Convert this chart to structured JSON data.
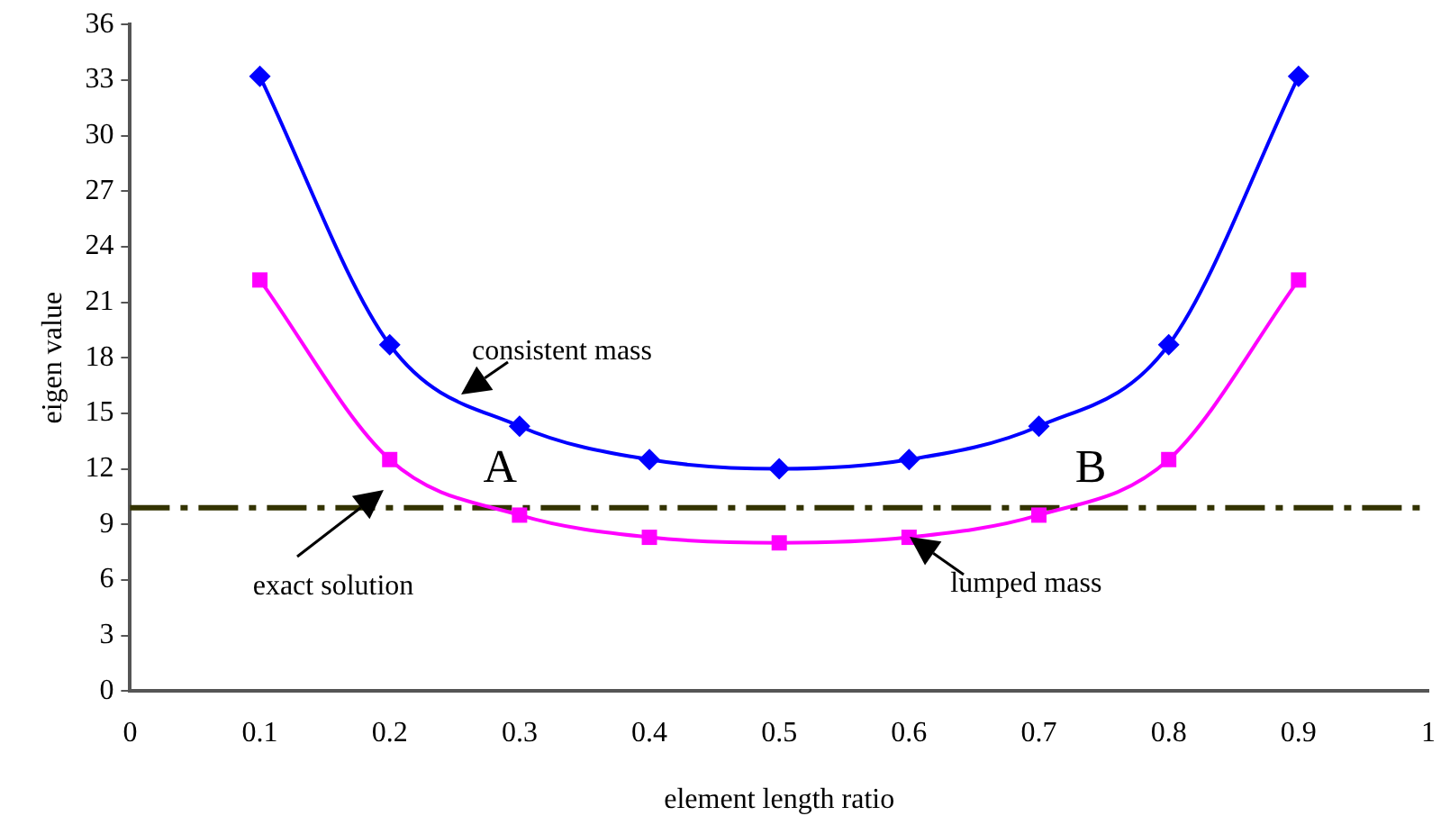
{
  "chart_data": {
    "type": "line",
    "xlabel": "element length ratio",
    "ylabel": "eigen value",
    "x": [
      0.1,
      0.2,
      0.3,
      0.4,
      0.5,
      0.6,
      0.7,
      0.8,
      0.9
    ],
    "series": [
      {
        "color": "#0000ff",
        "marker": "diamond",
        "values": [
          33.2,
          18.7,
          14.3,
          12.5,
          12.0,
          12.5,
          14.3,
          18.7,
          33.2
        ]
      },
      {
        "color": "#ff00ff",
        "marker": "square",
        "values": [
          22.2,
          12.5,
          9.5,
          8.3,
          8.0,
          8.3,
          9.5,
          12.5,
          22.2
        ]
      }
    ],
    "ref_lines": [
      {
        "axis": "y",
        "value": 9.9,
        "label": "exact solution",
        "color": "#333300",
        "line_style": "dashdot"
      }
    ],
    "annotations": [
      {
        "text": "consistent mass",
        "x": 0.255,
        "y": 16.0
      },
      {
        "text": "lumped mass",
        "x": 0.6,
        "y": 8.3
      },
      {
        "text": "A",
        "x": 0.285,
        "y": 9.9
      },
      {
        "text": "B",
        "x": 0.74,
        "y": 9.9
      }
    ],
    "xlim": [
      0,
      1
    ],
    "xticks": [
      0,
      0.1,
      0.2,
      0.3,
      0.4,
      0.5,
      0.6,
      0.7,
      0.8,
      0.9,
      1
    ],
    "ylim": [
      0,
      36
    ],
    "yticks": [
      0,
      3,
      6,
      9,
      12,
      15,
      18,
      21,
      24,
      27,
      30,
      33,
      36
    ],
    "grid": false,
    "legend": false,
    "line_style": "solid"
  }
}
